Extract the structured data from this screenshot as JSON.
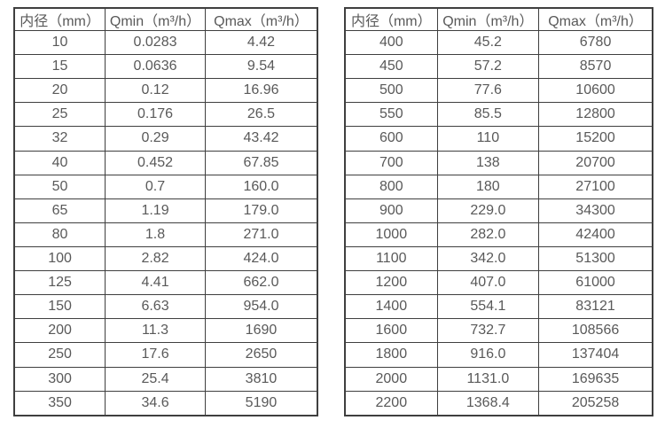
{
  "page": {
    "background": "#ffffff",
    "border_color": "#3f3f3f",
    "text_color": "#595959"
  },
  "tables": [
    {
      "name": "small-diameter-flow-rates",
      "headers": [
        "内径（mm）",
        "Qmin（m³/h）",
        "Qmax（m³/h）"
      ],
      "rows": [
        [
          "10",
          "0.0283",
          "4.42"
        ],
        [
          "15",
          "0.0636",
          "9.54"
        ],
        [
          "20",
          "0.12",
          "16.96"
        ],
        [
          "25",
          "0.176",
          "26.5"
        ],
        [
          "32",
          "0.29",
          "43.42"
        ],
        [
          "40",
          "0.452",
          "67.85"
        ],
        [
          "50",
          "0.7",
          "160.0"
        ],
        [
          "65",
          "1.19",
          "179.0"
        ],
        [
          "80",
          "1.8",
          "271.0"
        ],
        [
          "100",
          "2.82",
          "424.0"
        ],
        [
          "125",
          "4.41",
          "662.0"
        ],
        [
          "150",
          "6.63",
          "954.0"
        ],
        [
          "200",
          "11.3",
          "1690"
        ],
        [
          "250",
          "17.6",
          "2650"
        ],
        [
          "300",
          "25.4",
          "3810"
        ],
        [
          "350",
          "34.6",
          "5190"
        ]
      ]
    },
    {
      "name": "large-diameter-flow-rates",
      "headers": [
        "内径（mm）",
        "Qmin（m³/h）",
        "Qmax（m³/h）"
      ],
      "rows": [
        [
          "400",
          "45.2",
          "6780"
        ],
        [
          "450",
          "57.2",
          "8570"
        ],
        [
          "500",
          "77.6",
          "10600"
        ],
        [
          "550",
          "85.5",
          "12800"
        ],
        [
          "600",
          "110",
          "15200"
        ],
        [
          "700",
          "138",
          "20700"
        ],
        [
          "800",
          "180",
          "27100"
        ],
        [
          "900",
          "229.0",
          "34300"
        ],
        [
          "1000",
          "282.0",
          "42400"
        ],
        [
          "1100",
          "342.0",
          "51300"
        ],
        [
          "1200",
          "407.0",
          "61000"
        ],
        [
          "1400",
          "554.1",
          "83121"
        ],
        [
          "1600",
          "732.7",
          "108566"
        ],
        [
          "1800",
          "916.0",
          "137404"
        ],
        [
          "2000",
          "1131.0",
          "169635"
        ],
        [
          "2200",
          "1368.4",
          "205258"
        ]
      ]
    }
  ]
}
